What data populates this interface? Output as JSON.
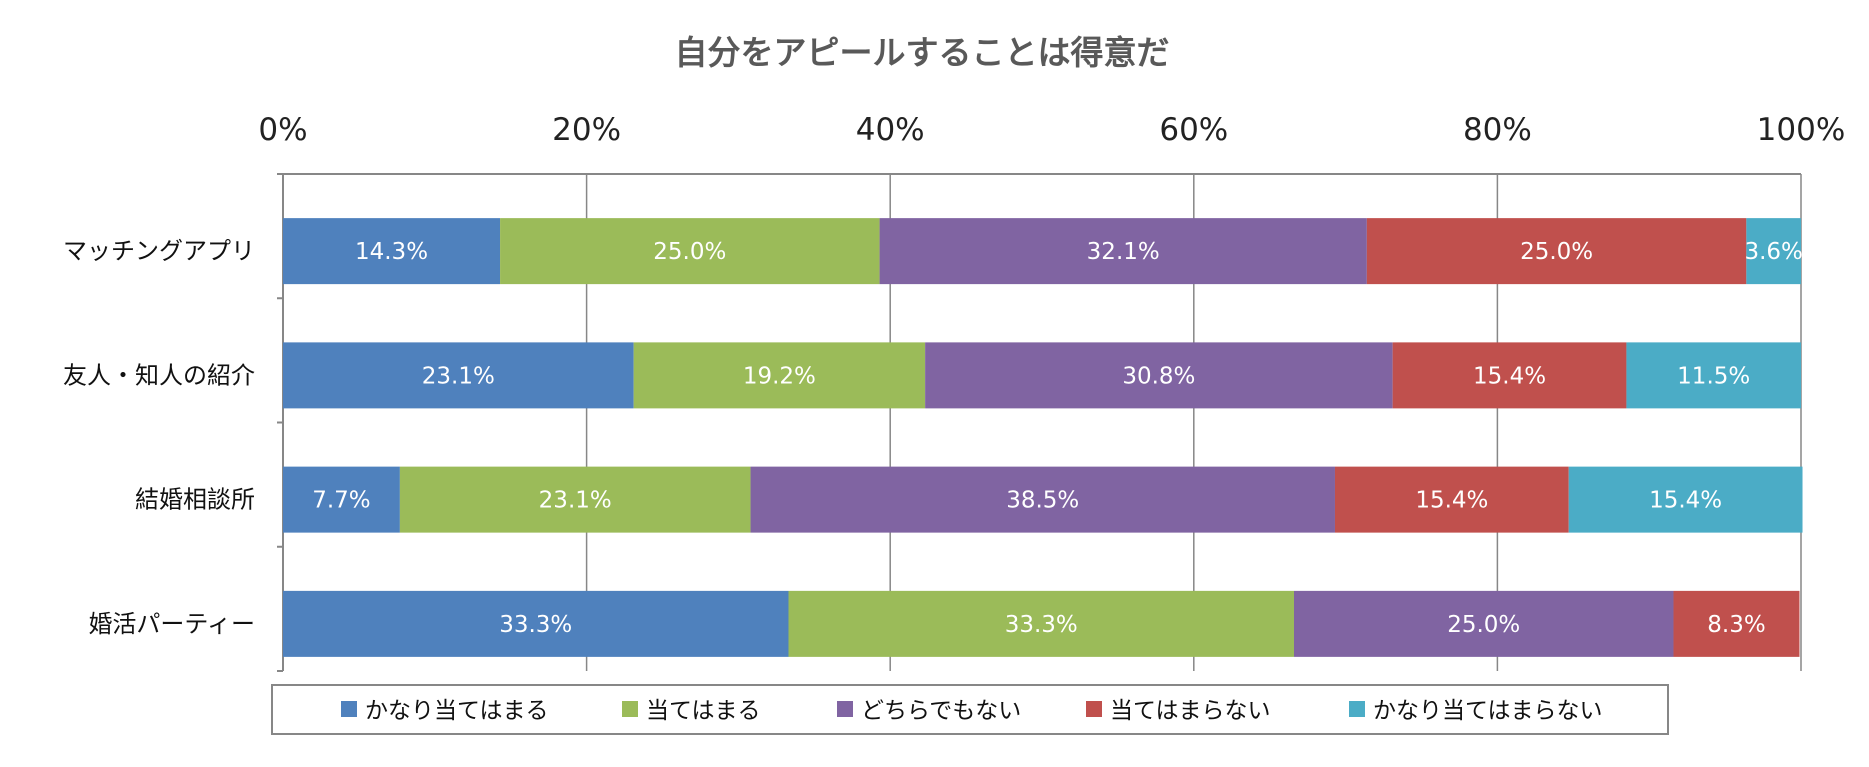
{
  "chart_data": {
    "type": "bar",
    "orientation": "horizontal",
    "stacked": "percent",
    "title": "自分をアピールすることは得意だ",
    "categories": [
      "マッチングアプリ",
      "友人・知人の紹介",
      "結婚相談所",
      "婚活パーティー"
    ],
    "series": [
      {
        "name": "かなり当てはまる",
        "color": "#4F81BD",
        "values": [
          14.3,
          23.1,
          7.7,
          33.3
        ]
      },
      {
        "name": "当てはまる",
        "color": "#9BBB59",
        "values": [
          25.0,
          19.2,
          23.1,
          33.3
        ]
      },
      {
        "name": "どちらでもない",
        "color": "#8064A2",
        "values": [
          32.1,
          30.8,
          38.5,
          25.0
        ]
      },
      {
        "name": "当てはまらない",
        "color": "#C0504D",
        "values": [
          25.0,
          15.4,
          15.4,
          8.3
        ]
      },
      {
        "name": "かなり当てはまらない",
        "color": "#4BACC6",
        "values": [
          3.6,
          11.5,
          15.4,
          0
        ]
      }
    ],
    "xlim": [
      0,
      100
    ],
    "xticks": [
      "0%",
      "20%",
      "40%",
      "60%",
      "80%",
      "100%"
    ],
    "xaxis_position": "top",
    "grid": true,
    "legend": "bottom"
  }
}
